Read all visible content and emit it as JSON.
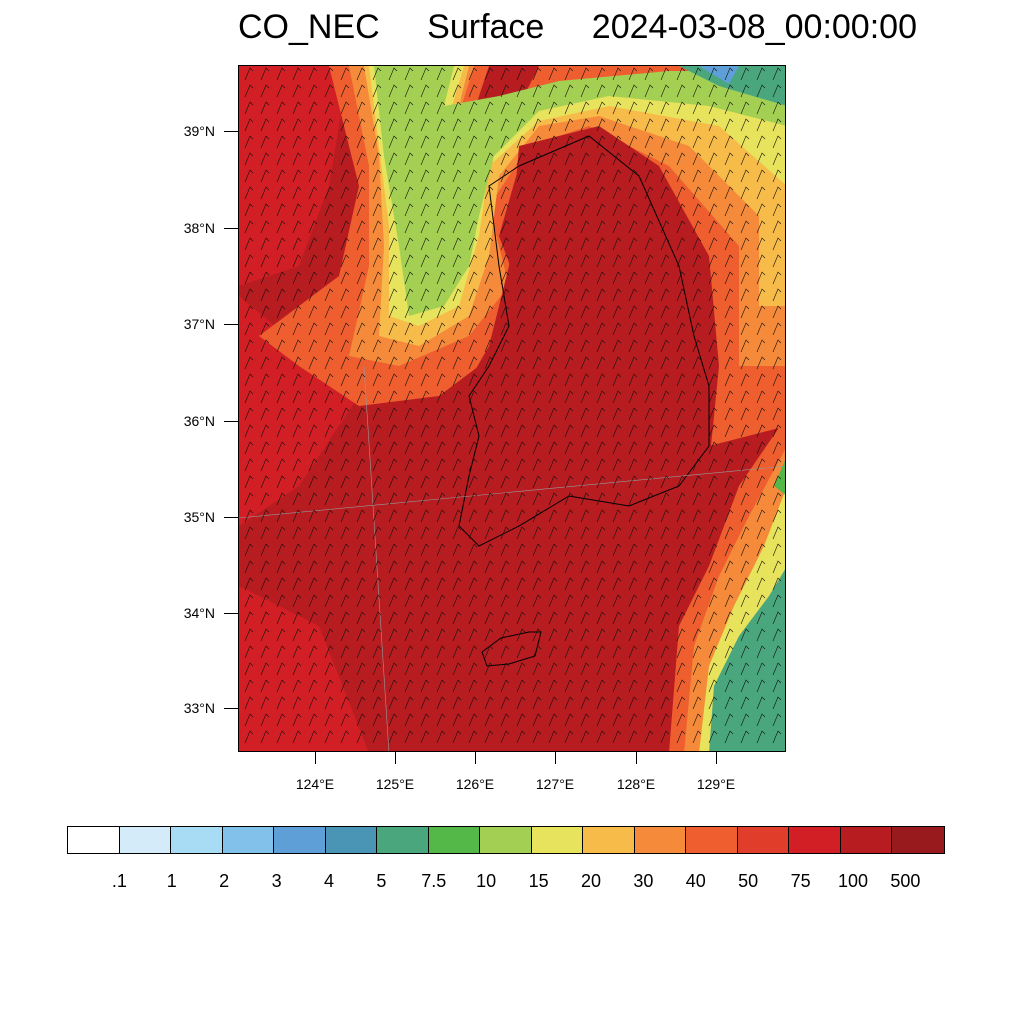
{
  "title": {
    "variable": "CO_NEC",
    "level": "Surface",
    "datetime": "2024-03-08_00:00:00"
  },
  "axes": {
    "lat_labels": [
      "39°N",
      "38°N",
      "37°N",
      "36°N",
      "35°N",
      "34°N",
      "33°N"
    ],
    "lon_labels": [
      "124°E",
      "125°E",
      "126°E",
      "127°E",
      "128°E",
      "129°E"
    ]
  },
  "colorbar": {
    "colors": [
      "#ffffff",
      "#d4ecfa",
      "#a8dcf5",
      "#82c1ea",
      "#5f9fd8",
      "#4a95b5",
      "#4aa67c",
      "#54b848",
      "#a3cf52",
      "#e8e35c",
      "#f7bb4a",
      "#f58a3a",
      "#ee5e2f",
      "#e03d2a",
      "#d11f25",
      "#b71c20",
      "#981a1c"
    ],
    "labels": [
      ".1",
      "1",
      "2",
      "3",
      "4",
      "5",
      "7.5",
      "10",
      "15",
      "20",
      "30",
      "40",
      "50",
      "75",
      "100",
      "500"
    ]
  }
}
